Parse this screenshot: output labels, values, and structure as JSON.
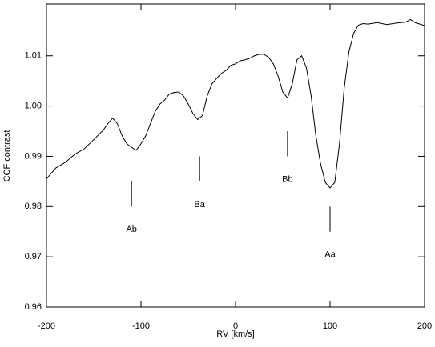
{
  "chart_data": {
    "type": "line",
    "xlabel": "RV [km/s]",
    "ylabel": "CCF contrast",
    "x": [
      -200,
      -190,
      -180,
      -170,
      -160,
      -150,
      -140,
      -135,
      -130,
      -125,
      -120,
      -115,
      -110,
      -105,
      -100,
      -95,
      -90,
      -85,
      -80,
      -75,
      -70,
      -65,
      -60,
      -55,
      -50,
      -45,
      -40,
      -35,
      -30,
      -25,
      -20,
      -15,
      -10,
      -5,
      0,
      5,
      10,
      15,
      20,
      25,
      30,
      35,
      40,
      45,
      50,
      55,
      60,
      65,
      70,
      75,
      80,
      85,
      90,
      95,
      100,
      105,
      110,
      115,
      120,
      125,
      130,
      135,
      140,
      150,
      160,
      170,
      180,
      185,
      190,
      200
    ],
    "series": [
      {
        "name": "CCF",
        "color": "#000000",
        "values": [
          0.9855,
          0.9877,
          0.9888,
          0.9904,
          0.9915,
          0.9933,
          0.9952,
          0.9965,
          0.9976,
          0.9965,
          0.9941,
          0.9925,
          0.9918,
          0.9912,
          0.9925,
          0.9941,
          0.9965,
          0.9989,
          1.0004,
          1.0012,
          1.0024,
          1.0027,
          1.0028,
          1.002,
          1.0004,
          0.9985,
          0.9973,
          0.9981,
          1.002,
          1.0044,
          1.0055,
          1.0065,
          1.0071,
          1.0081,
          1.0084,
          1.009,
          1.0092,
          1.0095,
          1.01,
          1.0103,
          1.0103,
          1.0097,
          1.0084,
          1.006,
          1.0028,
          1.0016,
          1.0044,
          1.0092,
          1.01,
          1.0076,
          1.002,
          0.9941,
          0.9885,
          0.9848,
          0.9837,
          0.9848,
          0.9925,
          1.0036,
          1.0108,
          1.0145,
          1.0161,
          1.0164,
          1.0163,
          1.0166,
          1.0162,
          1.0165,
          1.0167,
          1.0172,
          1.0166,
          1.016
        ]
      }
    ],
    "annotations": [
      {
        "label": "Ab",
        "x": -110,
        "y": [
          0.98,
          0.985
        ]
      },
      {
        "label": "Ba",
        "x": -38,
        "y": [
          0.985,
          0.99
        ]
      },
      {
        "label": "Bb",
        "x": 55,
        "y": [
          0.99,
          0.995
        ]
      },
      {
        "label": "Aa",
        "x": 100,
        "y": [
          0.975,
          0.98
        ]
      }
    ],
    "xlim": [
      -200,
      200
    ],
    "ylim": [
      0.96,
      1.0203
    ],
    "xticks": [
      -200,
      -100,
      0,
      100,
      200
    ],
    "yticks": [
      0.96,
      0.97,
      0.98,
      0.99,
      {
        "value": 1,
        "label": "1.00"
      },
      1.01
    ]
  }
}
